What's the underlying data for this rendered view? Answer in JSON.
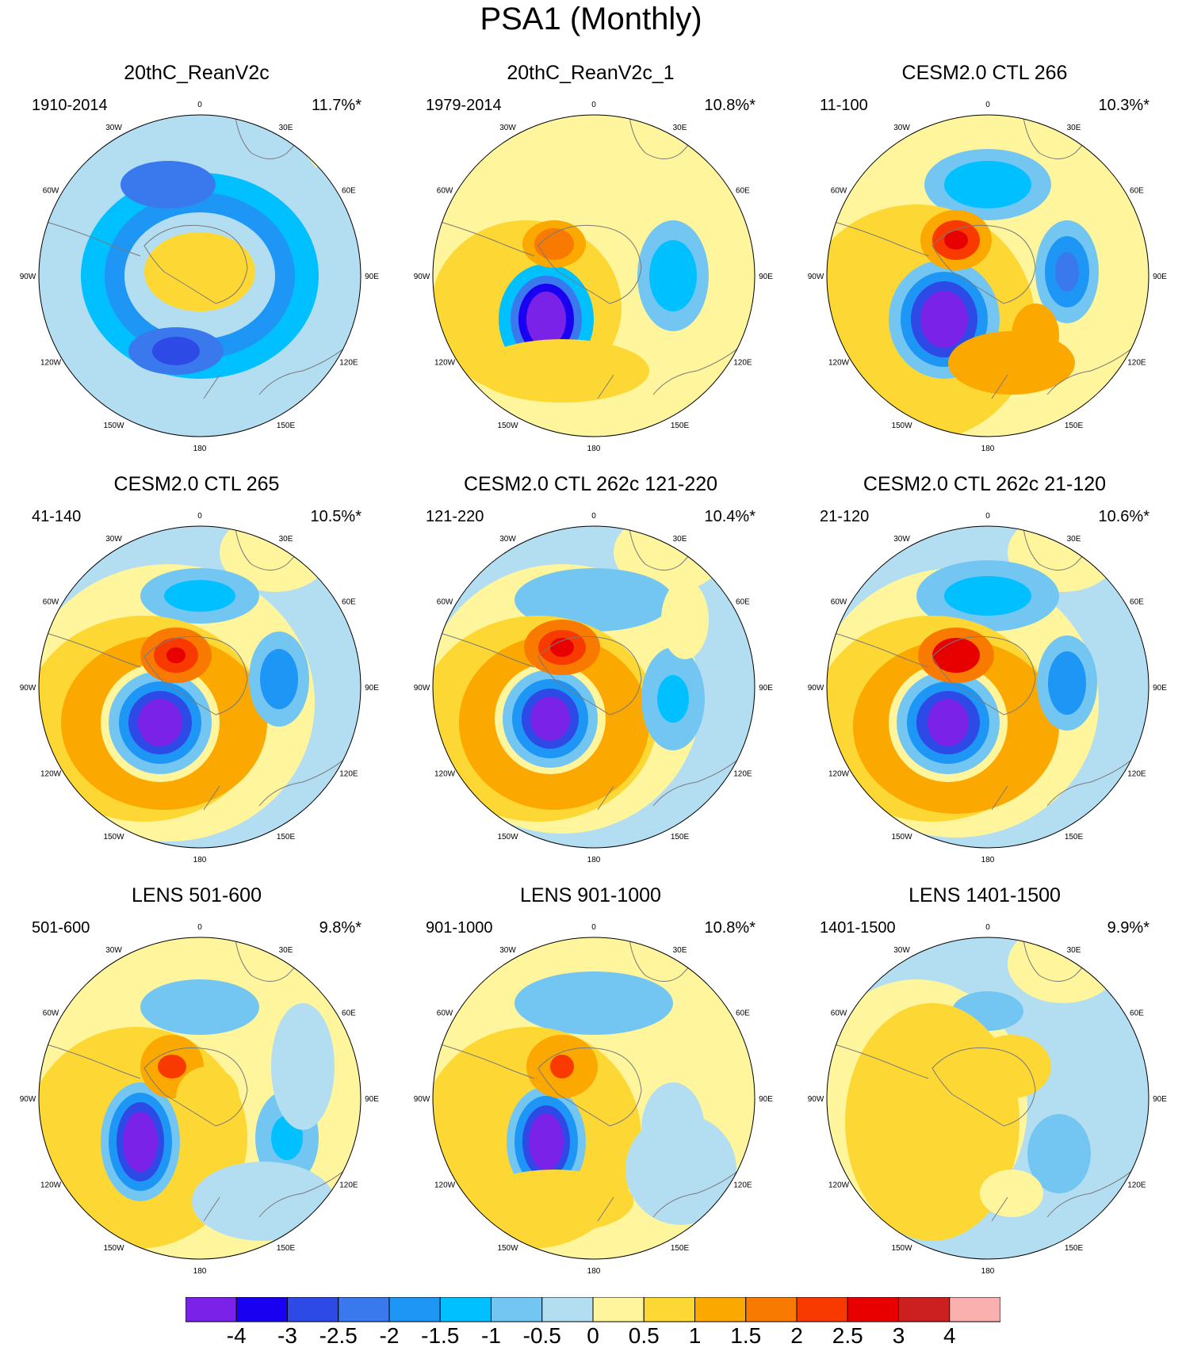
{
  "figure": {
    "title": "PSA1 (Monthly)"
  },
  "longitude_labels": [
    "0",
    "30E",
    "60E",
    "90E",
    "120E",
    "150E",
    "180",
    "150W",
    "120W",
    "90W",
    "60W",
    "30W"
  ],
  "chart_data": [
    {
      "type": "heatmap",
      "title": "20thC_ReanV2c",
      "period": "1910-2014",
      "variance_explained": "11.7%*"
    },
    {
      "type": "heatmap",
      "title": "20thC_ReanV2c_1",
      "period": "1979-2014",
      "variance_explained": "10.8%*"
    },
    {
      "type": "heatmap",
      "title": "CESM2.0 CTL 266",
      "period": "11-100",
      "variance_explained": "10.3%*"
    },
    {
      "type": "heatmap",
      "title": "CESM2.0 CTL 265",
      "period": "41-140",
      "variance_explained": "10.5%*"
    },
    {
      "type": "heatmap",
      "title": "CESM2.0 CTL 262c 121-220",
      "period": "121-220",
      "variance_explained": "10.4%*"
    },
    {
      "type": "heatmap",
      "title": "CESM2.0 CTL 262c 21-120",
      "period": "21-120",
      "variance_explained": "10.6%*"
    },
    {
      "type": "heatmap",
      "title": "LENS 501-600",
      "period": "501-600",
      "variance_explained": "9.8%*"
    },
    {
      "type": "heatmap",
      "title": "LENS 901-1000",
      "period": "901-1000",
      "variance_explained": "10.8%*"
    },
    {
      "type": "heatmap",
      "title": "LENS 1401-1500",
      "period": "1401-1500",
      "variance_explained": "9.9%*"
    }
  ],
  "colorbar": {
    "labels": [
      "-4",
      "-3",
      "-2.5",
      "-2",
      "-1.5",
      "-1",
      "-0.5",
      "0",
      "0.5",
      "1",
      "1.5",
      "2",
      "2.5",
      "3",
      "4"
    ],
    "colors": [
      "#7b22e8",
      "#1a00f0",
      "#2d49e6",
      "#3a78ee",
      "#1e96f5",
      "#00c0ff",
      "#74c6f2",
      "#b3def2",
      "#fff59d",
      "#fdd835",
      "#fba800",
      "#f97a00",
      "#f93a00",
      "#e80000",
      "#cc1f1f",
      "#fbb0b0"
    ]
  },
  "colors": {
    "land_outline": "#7a7a7a",
    "background": "#ffffff"
  }
}
